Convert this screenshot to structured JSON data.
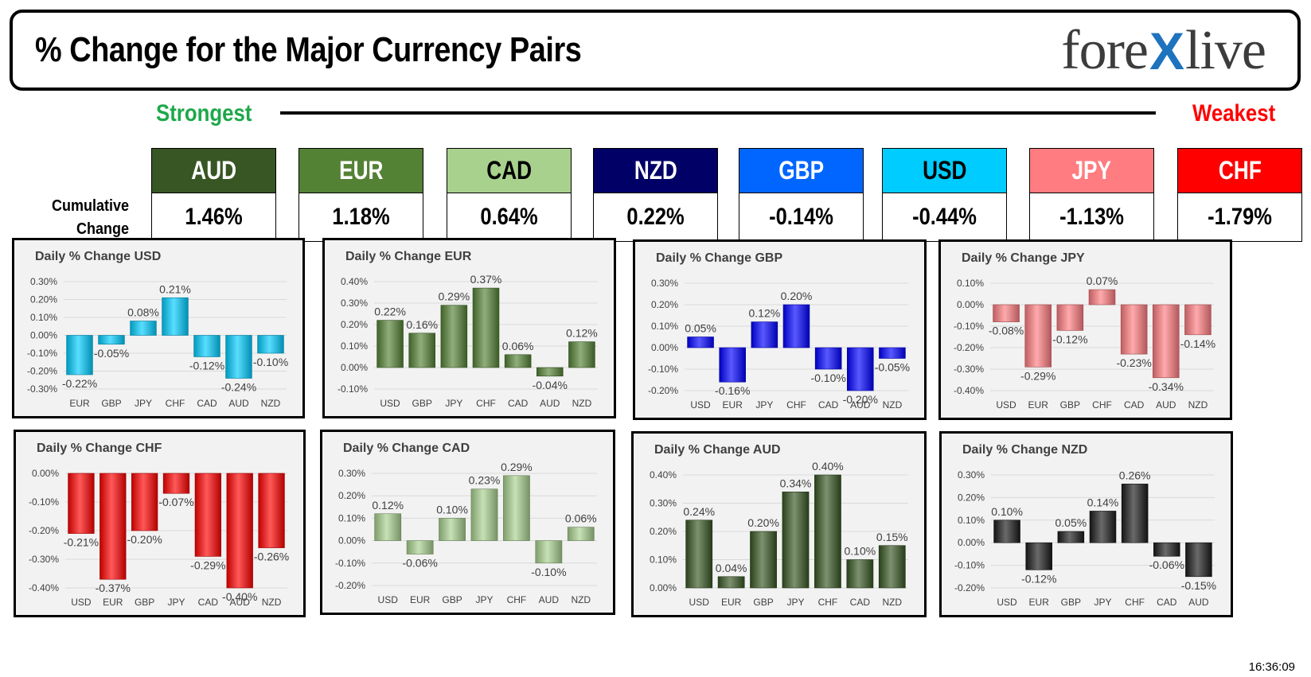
{
  "title": "% Change for the Major Currency Pairs",
  "logo": {
    "pre": "fore",
    "x": "X",
    "post": "live"
  },
  "strongest_label": "Strongest",
  "weakest_label": "Weakest",
  "cumulative_label_line1": "Cumulative",
  "cumulative_label_line2": "Change",
  "currencies": [
    {
      "code": "AUD",
      "value": "1.46%",
      "color": "#375623",
      "text_color": "#ffffff"
    },
    {
      "code": "EUR",
      "value": "1.18%",
      "color": "#548235",
      "text_color": "#ffffff"
    },
    {
      "code": "CAD",
      "value": "0.64%",
      "color": "#a9d18e",
      "text_color": "#000000"
    },
    {
      "code": "NZD",
      "value": "0.22%",
      "color": "#000066",
      "text_color": "#ffffff"
    },
    {
      "code": "GBP",
      "value": "-0.14%",
      "color": "#0066ff",
      "text_color": "#ffffff"
    },
    {
      "code": "USD",
      "value": "-0.44%",
      "color": "#00ccff",
      "text_color": "#000000"
    },
    {
      "code": "JPY",
      "value": "-1.13%",
      "color": "#ff7c80",
      "text_color": "#ffffff"
    },
    {
      "code": "CHF",
      "value": "-1.79%",
      "color": "#ff0000",
      "text_color": "#ffffff"
    }
  ],
  "chart_data": [
    {
      "type": "bar",
      "title": "Daily % Change USD",
      "color": "#00ccff",
      "categories": [
        "EUR",
        "GBP",
        "JPY",
        "CHF",
        "CAD",
        "AUD",
        "NZD"
      ],
      "values": [
        -0.22,
        -0.05,
        0.08,
        0.21,
        -0.12,
        -0.24,
        -0.1
      ],
      "labels": [
        "-0.22%",
        "-0.05%",
        "0.08%",
        "0.21%",
        "-0.12%",
        "-0.24%",
        "-0.10%"
      ],
      "ylim": [
        -0.3,
        0.3
      ],
      "yticks": [
        0.3,
        0.2,
        0.1,
        0.0,
        -0.1,
        -0.2,
        -0.3
      ],
      "ytick_labels": [
        "0.30%",
        "0.20%",
        "0.10%",
        "0.00%",
        "-0.10%",
        "-0.20%",
        "-0.30%"
      ]
    },
    {
      "type": "bar",
      "title": "Daily % Change EUR",
      "color": "#548235",
      "categories": [
        "USD",
        "GBP",
        "JPY",
        "CHF",
        "CAD",
        "AUD",
        "NZD"
      ],
      "values": [
        0.22,
        0.16,
        0.29,
        0.37,
        0.06,
        -0.04,
        0.12
      ],
      "labels": [
        "0.22%",
        "0.16%",
        "0.29%",
        "0.37%",
        "0.06%",
        "-0.04%",
        "0.12%"
      ],
      "ylim": [
        -0.1,
        0.4
      ],
      "yticks": [
        0.4,
        0.3,
        0.2,
        0.1,
        0.0,
        -0.1
      ],
      "ytick_labels": [
        "0.40%",
        "0.30%",
        "0.20%",
        "0.10%",
        "0.00%",
        "-0.10%"
      ]
    },
    {
      "type": "bar",
      "title": "Daily % Change GBP",
      "color": "#0000ff",
      "categories": [
        "USD",
        "EUR",
        "JPY",
        "CHF",
        "CAD",
        "AUD",
        "NZD"
      ],
      "values": [
        0.05,
        -0.16,
        0.12,
        0.2,
        -0.1,
        -0.2,
        -0.05
      ],
      "labels": [
        "0.05%",
        "-0.16%",
        "0.12%",
        "0.20%",
        "-0.10%",
        "-0.20%",
        "-0.05%"
      ],
      "ylim": [
        -0.2,
        0.3
      ],
      "yticks": [
        0.3,
        0.2,
        0.1,
        0.0,
        -0.1,
        -0.2
      ],
      "ytick_labels": [
        "0.30%",
        "0.20%",
        "0.10%",
        "0.00%",
        "-0.10%",
        "-0.20%"
      ]
    },
    {
      "type": "bar",
      "title": "Daily % Change JPY",
      "color": "#ff7c80",
      "categories": [
        "USD",
        "EUR",
        "GBP",
        "CHF",
        "CAD",
        "AUD",
        "NZD"
      ],
      "values": [
        -0.08,
        -0.29,
        -0.12,
        0.07,
        -0.23,
        -0.34,
        -0.14
      ],
      "labels": [
        "-0.08%",
        "-0.29%",
        "-0.12%",
        "0.07%",
        "-0.23%",
        "-0.34%",
        "-0.14%"
      ],
      "ylim": [
        -0.4,
        0.1
      ],
      "yticks": [
        0.1,
        0.0,
        -0.1,
        -0.2,
        -0.3,
        -0.4
      ],
      "ytick_labels": [
        "0.10%",
        "0.00%",
        "-0.10%",
        "-0.20%",
        "-0.30%",
        "-0.40%"
      ]
    },
    {
      "type": "bar",
      "title": "Daily % Change CHF",
      "color": "#ff0000",
      "categories": [
        "USD",
        "EUR",
        "GBP",
        "JPY",
        "CAD",
        "AUD",
        "NZD"
      ],
      "values": [
        -0.21,
        -0.37,
        -0.2,
        -0.07,
        -0.29,
        -0.4,
        -0.26
      ],
      "labels": [
        "-0.21%",
        "-0.37%",
        "-0.20%",
        "-0.07%",
        "-0.29%",
        "-0.40%",
        "-0.26%"
      ],
      "ylim": [
        -0.4,
        0.0
      ],
      "yticks": [
        0.0,
        -0.1,
        -0.2,
        -0.3,
        -0.4
      ],
      "ytick_labels": [
        "0.00%",
        "-0.10%",
        "-0.20%",
        "-0.30%",
        "-0.40%"
      ]
    },
    {
      "type": "bar",
      "title": "Daily % Change CAD",
      "color": "#a9d18e",
      "categories": [
        "USD",
        "EUR",
        "GBP",
        "JPY",
        "CHF",
        "AUD",
        "NZD"
      ],
      "values": [
        0.12,
        -0.06,
        0.1,
        0.23,
        0.29,
        -0.1,
        0.06
      ],
      "labels": [
        "0.12%",
        "-0.06%",
        "0.10%",
        "0.23%",
        "0.29%",
        "-0.10%",
        "0.06%"
      ],
      "ylim": [
        -0.2,
        0.3
      ],
      "yticks": [
        0.3,
        0.2,
        0.1,
        0.0,
        -0.1,
        -0.2
      ],
      "ytick_labels": [
        "0.30%",
        "0.20%",
        "0.10%",
        "0.00%",
        "-0.10%",
        "-0.20%"
      ]
    },
    {
      "type": "bar",
      "title": "Daily % Change AUD",
      "color": "#375623",
      "categories": [
        "USD",
        "EUR",
        "GBP",
        "JPY",
        "CHF",
        "CAD",
        "NZD"
      ],
      "values": [
        0.24,
        0.04,
        0.2,
        0.34,
        0.4,
        0.1,
        0.15
      ],
      "labels": [
        "0.24%",
        "0.04%",
        "0.20%",
        "0.34%",
        "0.40%",
        "0.10%",
        "0.15%"
      ],
      "ylim": [
        0.0,
        0.4
      ],
      "yticks": [
        0.4,
        0.3,
        0.2,
        0.1,
        0.0
      ],
      "ytick_labels": [
        "0.40%",
        "0.30%",
        "0.20%",
        "0.10%",
        "0.00%"
      ]
    },
    {
      "type": "bar",
      "title": "Daily % Change NZD",
      "color": "#1a1a1a",
      "categories": [
        "USD",
        "EUR",
        "GBP",
        "JPY",
        "CHF",
        "CAD",
        "AUD"
      ],
      "values": [
        0.1,
        -0.12,
        0.05,
        0.14,
        0.26,
        -0.06,
        -0.15
      ],
      "labels": [
        "0.10%",
        "-0.12%",
        "0.05%",
        "0.14%",
        "0.26%",
        "-0.06%",
        "-0.15%"
      ],
      "ylim": [
        -0.2,
        0.3
      ],
      "yticks": [
        0.3,
        0.2,
        0.1,
        0.0,
        -0.1,
        -0.2
      ],
      "ytick_labels": [
        "0.30%",
        "0.20%",
        "0.10%",
        "0.00%",
        "-0.10%",
        "-0.20%"
      ]
    }
  ],
  "timestamp": "16:36:09"
}
